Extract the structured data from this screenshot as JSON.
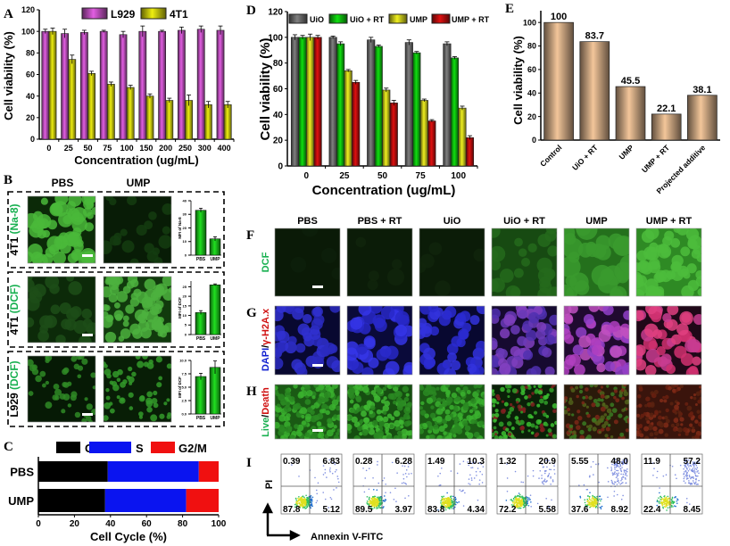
{
  "colors": {
    "L929": "#e25ee2",
    "4T1": "#eeee10",
    "UiO": "#808080",
    "UiO + RT": "#10e010",
    "UMP": "#f0f020",
    "UMP + RT": "#e01010",
    "E_bar": "#f3c69a",
    "G1": "#000000",
    "S": "#0a14f0",
    "G2/M": "#f01010",
    "green_label": "#18b050",
    "red_label": "#d01010",
    "blue_label": "#1020d0"
  },
  "panel_labels": {
    "A": "A",
    "B": "B",
    "C": "C",
    "D": "D",
    "E": "E",
    "F": "F",
    "G": "G",
    "H": "H",
    "I": "I"
  },
  "chart_data": [
    {
      "id": "A",
      "type": "bar",
      "categories": [
        "0",
        "25",
        "50",
        "75",
        "100",
        "150",
        "200",
        "250",
        "300",
        "400"
      ],
      "series": [
        {
          "name": "L929",
          "values": [
            100,
            98,
            99,
            100,
            97,
            100,
            100,
            101,
            102,
            101
          ],
          "errors": [
            2,
            4,
            2,
            1,
            3,
            5,
            1,
            3,
            3,
            4
          ]
        },
        {
          "name": "4T1",
          "values": [
            100,
            74,
            61,
            51,
            48,
            40,
            36,
            36,
            32,
            32
          ],
          "errors": [
            3,
            4,
            2,
            2,
            2,
            2,
            2,
            5,
            3,
            3
          ]
        }
      ],
      "xlabel": "Concentration (ug/mL)",
      "ylabel": "Cell viability (%)",
      "ylim": [
        0,
        120
      ],
      "yticks": [
        "0",
        "20",
        "40",
        "60",
        "80",
        "100",
        "120"
      ],
      "legend": "top"
    },
    {
      "id": "D",
      "type": "bar",
      "categories": [
        "0",
        "25",
        "50",
        "75",
        "100"
      ],
      "series": [
        {
          "name": "UiO",
          "values": [
            100,
            100,
            98,
            96,
            95
          ],
          "errors": [
            2,
            1,
            2,
            2,
            1.5
          ]
        },
        {
          "name": "UiO + RT",
          "values": [
            100,
            95,
            93,
            88,
            84
          ],
          "errors": [
            1.5,
            1.5,
            1,
            1,
            1
          ]
        },
        {
          "name": "UMP",
          "values": [
            100,
            74,
            59,
            51,
            45
          ],
          "errors": [
            2.5,
            1,
            1.5,
            1,
            1.5
          ]
        },
        {
          "name": "UMP + RT",
          "values": [
            100,
            65,
            49,
            35,
            22
          ],
          "errors": [
            1.5,
            1.5,
            2,
            1,
            1.5
          ]
        }
      ],
      "xlabel": "Concentration (ug/mL)",
      "ylabel": "Cell viability (%)",
      "ylim": [
        0,
        120
      ],
      "yticks": [
        "0",
        "20",
        "40",
        "60",
        "80",
        "100",
        "120"
      ],
      "legend": "top"
    },
    {
      "id": "E",
      "type": "bar",
      "categories": [
        "Control",
        "UiO + RT",
        "UMP",
        "UMP + RT",
        "Projected additive"
      ],
      "values": [
        100,
        83.7,
        45.5,
        22.1,
        38.1
      ],
      "data_labels": [
        "100",
        "83.7",
        "45.5",
        "22.1",
        "38.1"
      ],
      "ylabel": "Cell viability (%)",
      "ylim": [
        0,
        110
      ],
      "yticks": [
        "0",
        "20",
        "40",
        "60",
        "80",
        "100"
      ]
    },
    {
      "id": "B1",
      "type": "bar",
      "categories": [
        "PBS",
        "UMP"
      ],
      "values": [
        33,
        12
      ],
      "errors": [
        1.5,
        1.5
      ],
      "ylabel": "MFI of Na-8",
      "ylim": [
        0,
        40
      ],
      "yticks": [
        "0",
        "10",
        "20",
        "30",
        "40"
      ]
    },
    {
      "id": "B2",
      "type": "bar",
      "categories": [
        "PBS",
        "UMP"
      ],
      "values": [
        11.5,
        26
      ],
      "errors": [
        1,
        0.5
      ],
      "ylabel": "MFI of DCF",
      "ylim": [
        0,
        28
      ],
      "yticks": [
        "0",
        "5",
        "10",
        "15",
        "20",
        "25"
      ]
    },
    {
      "id": "B3",
      "type": "bar",
      "categories": [
        "PBS",
        "UMP"
      ],
      "values": [
        7,
        8.7
      ],
      "errors": [
        0.6,
        1.2
      ],
      "ylabel": "MFI of DCF",
      "ylim": [
        0,
        10
      ],
      "yticks": [
        "0.0",
        "2.5",
        "5.0",
        "7.5",
        "10.0"
      ]
    },
    {
      "id": "C",
      "type": "bar",
      "orientation": "horizontal",
      "stacked": true,
      "categories": [
        "PBS",
        "UMP"
      ],
      "series": [
        {
          "name": "G1",
          "values": [
            38.5,
            37
          ]
        },
        {
          "name": "S",
          "values": [
            50.5,
            45
          ]
        },
        {
          "name": "G2/M",
          "values": [
            11,
            18
          ]
        }
      ],
      "xlabel": "Cell Cycle (%)",
      "xlim": [
        0,
        100
      ],
      "xticks": [
        "0",
        "20",
        "40",
        "60",
        "80",
        "100"
      ],
      "legend": "top"
    },
    {
      "id": "I",
      "type": "scatter",
      "xlabel": "Annexin V-FITC",
      "ylabel": "PI",
      "quadrants": [
        {
          "UL": "0.39",
          "UR": "6.83",
          "LL": "87.8",
          "LR": "5.12"
        },
        {
          "UL": "0.28",
          "UR": "6.28",
          "LL": "89.5",
          "LR": "3.97"
        },
        {
          "UL": "1.49",
          "UR": "10.3",
          "LL": "83.8",
          "LR": "4.34"
        },
        {
          "UL": "1.32",
          "UR": "20.9",
          "LL": "72.2",
          "LR": "5.58"
        },
        {
          "UL": "5.55",
          "UR": "48.0",
          "LL": "37.6",
          "LR": "8.92"
        },
        {
          "UL": "11.9",
          "UR": "57.2",
          "LL": "22.4",
          "LR": "8.45"
        }
      ]
    }
  ],
  "panel_B": {
    "columns": [
      "PBS",
      "UMP"
    ],
    "rows": [
      {
        "cell": "4T1",
        "probe": "(Na-8)"
      },
      {
        "cell": "4T1",
        "probe": "(DCF)"
      },
      {
        "cell": "L929",
        "probe": "(DCF)"
      }
    ]
  },
  "panel_FGH": {
    "columns": [
      "PBS",
      "PBS + RT",
      "UiO",
      "UiO + RT",
      "UMP",
      "UMP + RT"
    ],
    "row_F": "DCF",
    "row_G_a": "DAPI",
    "row_G_sep": "/",
    "row_G_b": "γ-H2A.x",
    "row_H_a": "Live",
    "row_H_sep": "/",
    "row_H_b": "Death"
  }
}
